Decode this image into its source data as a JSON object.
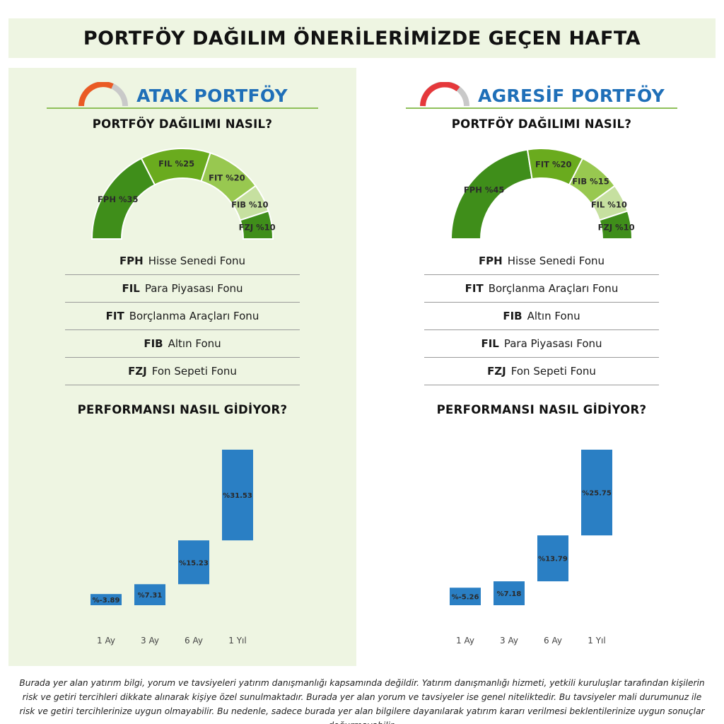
{
  "header": {
    "title": "PORTFÖY DAĞILIM ÖNERİLERİMİZDE GEÇEN HAFTA"
  },
  "colors": {
    "banner_bg": "#eef5e2",
    "panel_bg": "#eef5e2",
    "title_blue": "#1f6fb8",
    "bar_blue": "#2a7fc4",
    "green_dark": "#3f8e1a",
    "green_mid": "#6aab1e",
    "green_light": "#98c850",
    "green_pale": "#c6e0a0",
    "icon_orange": "#ea5a24",
    "icon_red": "#e5383b",
    "icon_gray": "#c9c9c9"
  },
  "portfolios": [
    {
      "name": "ATAK PORTFÖY",
      "icon": "speedometer-orange-icon",
      "allocation_heading": "PORTFÖY DAĞILIMI NASIL?",
      "legend": [
        {
          "code": "FPH",
          "label": "Hisse Senedi Fonu"
        },
        {
          "code": "FIL",
          "label": "Para Piyasası Fonu"
        },
        {
          "code": "FIT",
          "label": "Borçlanma Araçları Fonu"
        },
        {
          "code": "FIB",
          "label": "Altın Fonu"
        },
        {
          "code": "FZJ",
          "label": "Fon Sepeti Fonu"
        }
      ],
      "performance_heading": "PERFORMANSI NASIL GİDİYOR?"
    },
    {
      "name": "AGRESİF PORTFÖY",
      "icon": "speedometer-red-icon",
      "allocation_heading": "PORTFÖY DAĞILIMI NASIL?",
      "legend": [
        {
          "code": "FPH",
          "label": "Hisse Senedi Fonu"
        },
        {
          "code": "FIT",
          "label": "Borçlanma Araçları Fonu"
        },
        {
          "code": "FIB",
          "label": "Altın Fonu"
        },
        {
          "code": "FIL",
          "label": "Para Piyasası Fonu"
        },
        {
          "code": "FZJ",
          "label": "Fon Sepeti Fonu"
        }
      ],
      "performance_heading": "PERFORMANSI NASIL GİDİYOR?"
    }
  ],
  "chart_data": [
    {
      "type": "pie",
      "style": "half-donut",
      "categories": [
        "FPH",
        "FIL",
        "FIT",
        "FIB",
        "FZJ"
      ],
      "values": [
        35,
        25,
        20,
        10,
        10
      ],
      "labels": [
        "FPH %35",
        "FIL %25",
        "FIT %20",
        "FIB %10",
        "FZJ %10"
      ],
      "colors": [
        "#3f8e1a",
        "#6aab1e",
        "#98c850",
        "#c6e0a0",
        "#3f8e1a"
      ],
      "label_colors": [
        "#2b2b2b",
        "#ffffff",
        "#ffffff",
        "#2b2b2b",
        "#2b2b2b"
      ]
    },
    {
      "type": "pie",
      "style": "half-donut",
      "categories": [
        "FPH",
        "FIT",
        "FIB",
        "FIL",
        "FZJ"
      ],
      "values": [
        45,
        20,
        15,
        10,
        10
      ],
      "labels": [
        "FPH %45",
        "FIT %20",
        "FIB %15",
        "FIL %10",
        "FZJ %10"
      ],
      "colors": [
        "#3f8e1a",
        "#6aab1e",
        "#98c850",
        "#c6e0a0",
        "#3f8e1a"
      ],
      "label_colors": [
        "#2b2b2b",
        "#ffffff",
        "#2b2b2b",
        "#2b2b2b",
        "#2b2b2b"
      ]
    },
    {
      "type": "bar",
      "style": "waterfall",
      "categories": [
        "1 Ay",
        "3 Ay",
        "6 Ay",
        "1 Yıl"
      ],
      "values": [
        -3.89,
        7.31,
        15.23,
        31.53
      ],
      "value_labels": [
        "%-3.89",
        "%7.31",
        "%15.23",
        "%31.53"
      ],
      "grid": false
    },
    {
      "type": "bar",
      "style": "waterfall",
      "categories": [
        "1 Ay",
        "3 Ay",
        "6 Ay",
        "1 Yıl"
      ],
      "values": [
        -5.26,
        7.18,
        13.79,
        25.75
      ],
      "value_labels": [
        "%-5.26",
        "%7.18",
        "%13.79",
        "%25.75"
      ],
      "grid": false
    }
  ],
  "disclaimer": "Burada yer alan yatırım bilgi, yorum ve tavsiyeleri yatırım danışmanlığı kapsamında değildir. Yatırım danışmanlığı hizmeti, yetkili kuruluşlar tarafından kişilerin risk ve getiri tercihleri dikkate alınarak kişiye özel sunulmaktadır. Burada yer alan yorum ve tavsiyeler ise genel niteliktedir. Bu tavsiyeler mali durumunuz ile risk ve getiri tercihlerinize uygun olmayabilir. Bu nedenle, sadece burada yer alan bilgilere dayanılarak yatırım kararı verilmesi beklentilerinize uygun sonuçlar doğurmayabilir."
}
